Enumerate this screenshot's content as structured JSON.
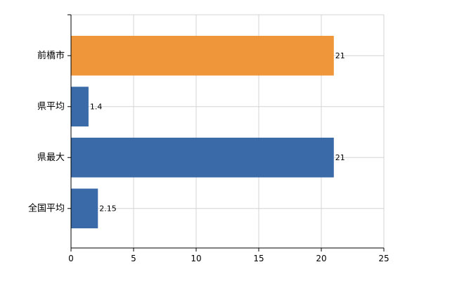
{
  "chart_data": {
    "type": "bar",
    "orientation": "horizontal",
    "categories": [
      "前橋市",
      "県平均",
      "県最大",
      "全国平均"
    ],
    "values": [
      21,
      1.4,
      21,
      2.15
    ],
    "value_labels": [
      "21",
      "1.4",
      "21",
      "2.15"
    ],
    "bar_colors": [
      "#f0963a",
      "#3a6aa8",
      "#3a6aa8",
      "#3a6aa8"
    ],
    "xlim": [
      0,
      25
    ],
    "x_ticks": [
      0,
      5,
      10,
      15,
      20,
      25
    ],
    "x_tick_labels": [
      "0",
      "5",
      "10",
      "15",
      "20",
      "25"
    ],
    "grid": true,
    "title": "",
    "xlabel": "",
    "ylabel": ""
  }
}
